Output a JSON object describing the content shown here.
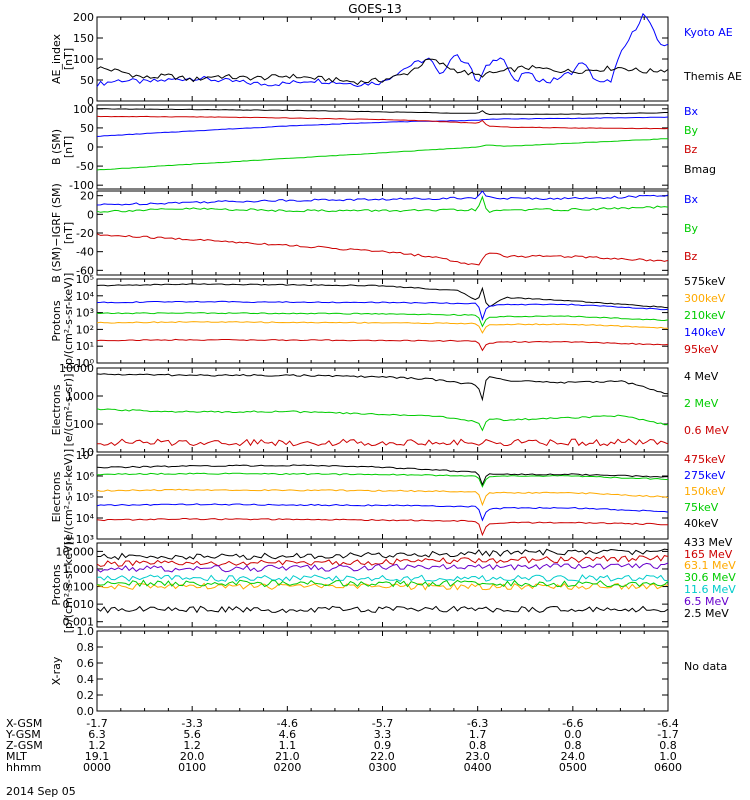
{
  "title": "GOES-13",
  "date_label": "2014 Sep 05",
  "no_data_label": "No data",
  "ephemeris": {
    "rows": [
      {
        "name": "X-GSM",
        "values": [
          "-1.7",
          "-3.3",
          "-4.6",
          "-5.7",
          "-6.3",
          "-6.6",
          "-6.4"
        ]
      },
      {
        "name": "Y-GSM",
        "values": [
          "6.3",
          "5.6",
          "4.6",
          "3.3",
          "1.7",
          "0.0",
          "-1.7"
        ]
      },
      {
        "name": "Z-GSM",
        "values": [
          "1.2",
          "1.2",
          "1.1",
          "0.9",
          "0.8",
          "0.8",
          "0.8"
        ]
      },
      {
        "name": "MLT",
        "values": [
          "19.1",
          "20.0",
          "21.0",
          "22.0",
          "23.0",
          "24.0",
          "1.0"
        ]
      },
      {
        "name": "hhmm",
        "values": [
          "0000",
          "0100",
          "0200",
          "0300",
          "0400",
          "0500",
          "0600"
        ]
      }
    ]
  },
  "chart_data": [
    {
      "type": "line",
      "id": "ae",
      "ylabel": [
        "AE_index",
        "[nT]"
      ],
      "ylim": [
        0,
        200
      ],
      "yscale": "linear",
      "yticks": [
        "0",
        "50",
        "100",
        "150",
        "200"
      ],
      "xlim": [
        "0000",
        "0600"
      ],
      "series": [
        {
          "name": "Kyoto AE",
          "color": "#0000ff",
          "x": [
            0,
            0.25,
            0.5,
            0.75,
            1,
            1.25,
            1.5,
            1.75,
            2,
            2.25,
            2.5,
            2.75,
            3,
            3.1,
            3.25,
            3.4,
            3.5,
            3.6,
            3.75,
            3.9,
            4,
            4.1,
            4.25,
            4.4,
            4.5,
            4.6,
            4.75,
            4.9,
            5,
            5.1,
            5.2,
            5.3,
            5.4,
            5.5,
            5.6,
            5.75,
            5.9,
            6
          ],
          "y": [
            40,
            50,
            45,
            50,
            55,
            50,
            45,
            40,
            42,
            50,
            45,
            40,
            45,
            60,
            80,
            95,
            100,
            60,
            110,
            90,
            40,
            85,
            110,
            40,
            70,
            55,
            45,
            60,
            70,
            95,
            60,
            40,
            50,
            110,
            150,
            210,
            140,
            130
          ]
        },
        {
          "name": "Themis AE",
          "color": "#000000",
          "x": [
            0,
            0.25,
            0.5,
            0.75,
            1,
            1.25,
            1.5,
            1.75,
            2,
            2.25,
            2.5,
            2.75,
            3,
            3.25,
            3.5,
            3.75,
            4,
            4.25,
            4.5,
            4.75,
            5,
            5.25,
            5.5,
            5.75,
            6
          ],
          "y": [
            80,
            70,
            55,
            60,
            50,
            60,
            55,
            55,
            60,
            55,
            50,
            45,
            50,
            65,
            100,
            75,
            60,
            70,
            80,
            75,
            70,
            75,
            80,
            70,
            75
          ]
        }
      ]
    },
    {
      "type": "line",
      "id": "bsm",
      "ylabel": [
        "B (SM)",
        "[nT]"
      ],
      "ylim": [
        -110,
        110
      ],
      "yscale": "linear",
      "yticks": [
        "-100",
        "-50",
        "0",
        "50",
        "100"
      ],
      "xlim": [
        "0000",
        "0600"
      ],
      "series": [
        {
          "name": "Bx",
          "color": "#0000ff",
          "x": [
            0,
            1,
            2,
            3,
            4,
            4.1,
            5,
            6
          ],
          "y": [
            28,
            42,
            55,
            65,
            70,
            73,
            75,
            78
          ]
        },
        {
          "name": "By",
          "color": "#00cc00",
          "x": [
            0,
            1,
            2,
            3,
            4,
            4.1,
            4.3,
            5,
            6
          ],
          "y": [
            -60,
            -45,
            -30,
            -15,
            0,
            5,
            2,
            10,
            22
          ]
        },
        {
          "name": "Bz",
          "color": "#cc0000",
          "x": [
            0,
            1,
            2,
            3,
            3.5,
            4,
            4.05,
            4.1,
            4.3,
            5,
            6
          ],
          "y": [
            80,
            79,
            76,
            72,
            68,
            62,
            70,
            55,
            52,
            50,
            48
          ]
        },
        {
          "name": "Bmag",
          "color": "#000000",
          "x": [
            0,
            1,
            2,
            3,
            4,
            4.05,
            4.1,
            4.3,
            5,
            6
          ],
          "y": [
            100,
            98,
            96,
            92,
            88,
            95,
            85,
            86,
            86,
            90
          ]
        }
      ]
    },
    {
      "type": "line",
      "id": "bigrf",
      "ylabel": [
        "B (SM)−IGRF (SM)",
        "[nT]"
      ],
      "ylim": [
        -65,
        25
      ],
      "yscale": "linear",
      "yticks": [
        "-60",
        "-40",
        "-20",
        "0",
        "20"
      ],
      "xlim": [
        "0000",
        "0600"
      ],
      "series": [
        {
          "name": "Bx",
          "color": "#0000ff",
          "x": [
            0,
            1,
            2,
            3,
            4,
            4.05,
            4.1,
            4.3,
            5,
            6
          ],
          "y": [
            10,
            13,
            15,
            16,
            18,
            25,
            18,
            17,
            17,
            20
          ]
        },
        {
          "name": "By",
          "color": "#00cc00",
          "x": [
            0,
            1,
            2,
            3,
            3.5,
            4,
            4.05,
            4.1,
            4.3,
            5,
            6
          ],
          "y": [
            3,
            6,
            4,
            4,
            4,
            5,
            18,
            2,
            5,
            5,
            8
          ]
        },
        {
          "name": "Bz",
          "color": "#cc0000",
          "x": [
            0,
            1,
            2,
            3,
            3.5,
            4,
            4.05,
            4.1,
            4.3,
            5,
            6
          ],
          "y": [
            -22,
            -27,
            -33,
            -40,
            -45,
            -55,
            -48,
            -40,
            -45,
            -45,
            -50
          ]
        }
      ]
    },
    {
      "type": "line",
      "id": "protons_kev",
      "ylabel": [
        "Protons",
        "[p/(cm²-s-sr-keV)]"
      ],
      "ylim": [
        1,
        100000
      ],
      "yscale": "log",
      "yticks": [
        "10⁰",
        "10¹",
        "10²",
        "10³",
        "10⁴",
        "10⁵"
      ],
      "xlim": [
        "0000",
        "0600"
      ],
      "series": [
        {
          "name": "575keV",
          "color": "#000000",
          "x": [
            0,
            1,
            2,
            3,
            3.8,
            4,
            4.05,
            4.1,
            4.3,
            5,
            6
          ],
          "y": [
            40000,
            50000,
            45000,
            40000,
            20000,
            5000,
            30000,
            2000,
            8000,
            5000,
            2000
          ]
        },
        {
          "name": "300keV",
          "color": "#ffaa00",
          "x": [
            0,
            1,
            2,
            3,
            4,
            4.05,
            4.1,
            4.3,
            5,
            6
          ],
          "y": [
            250,
            280,
            260,
            250,
            220,
            60,
            180,
            200,
            200,
            120
          ]
        },
        {
          "name": "210keV",
          "color": "#00cc00",
          "x": [
            0,
            1,
            2,
            3,
            4,
            4.05,
            4.1,
            4.3,
            5,
            6
          ],
          "y": [
            900,
            950,
            900,
            850,
            700,
            150,
            500,
            600,
            600,
            350
          ]
        },
        {
          "name": "140keV",
          "color": "#0000ff",
          "x": [
            0,
            1,
            2,
            3,
            4,
            4.05,
            4.1,
            4.3,
            5,
            6
          ],
          "y": [
            4000,
            4500,
            4200,
            4000,
            3500,
            400,
            2500,
            3000,
            3000,
            1500
          ]
        },
        {
          "name": "95keV",
          "color": "#cc0000",
          "x": [
            0,
            1,
            2,
            3,
            4,
            4.05,
            4.1,
            4.3,
            5,
            6
          ],
          "y": [
            22,
            24,
            23,
            22,
            20,
            6,
            15,
            18,
            18,
            12
          ]
        }
      ]
    },
    {
      "type": "line",
      "id": "electrons_mev",
      "ylabel": [
        "Electrons",
        "[e/(cm²-s-sr)]"
      ],
      "ylim": [
        10,
        10000
      ],
      "yscale": "log",
      "yticks": [
        "10",
        "100",
        "1000",
        "10000"
      ],
      "xlim": [
        "0000",
        "0600"
      ],
      "series": [
        {
          "name": "4 MeV",
          "color": "#000000",
          "x": [
            0,
            1,
            2,
            3,
            3.5,
            4,
            4.05,
            4.1,
            4.3,
            5,
            5.5,
            6
          ],
          "y": [
            6000,
            5500,
            5500,
            4800,
            4000,
            2500,
            800,
            5500,
            3500,
            3000,
            3500,
            1200
          ]
        },
        {
          "name": "2 MeV",
          "color": "#00cc00",
          "x": [
            0,
            1,
            2,
            3,
            3.5,
            4,
            4.05,
            4.1,
            4.3,
            5,
            5.5,
            6
          ],
          "y": [
            330,
            270,
            280,
            220,
            200,
            120,
            60,
            150,
            140,
            170,
            200,
            90
          ]
        },
        {
          "name": "0.6 MeV",
          "color": "#cc0000",
          "x": [
            0,
            1,
            2,
            3,
            4,
            5,
            6
          ],
          "y": [
            22,
            22,
            22,
            22,
            22,
            22,
            22
          ]
        }
      ]
    },
    {
      "type": "line",
      "id": "electrons_kev",
      "ylabel": [
        "Electrons",
        "[e/(cm²-s-sr-keV)]"
      ],
      "ylim": [
        1000,
        10000000
      ],
      "yscale": "log",
      "yticks": [
        "10³",
        "10⁴",
        "10⁵",
        "10⁶",
        "10⁷"
      ],
      "xlim": [
        "0000",
        "0600"
      ],
      "series": [
        {
          "name": "475keV",
          "color": "#cc0000",
          "x": [
            0,
            1,
            2,
            3,
            4,
            4.05,
            4.1,
            4.3,
            5,
            6
          ],
          "y": [
            8000,
            9000,
            8500,
            8000,
            7000,
            1500,
            5000,
            6000,
            6000,
            5000
          ]
        },
        {
          "name": "275keV",
          "color": "#0000ff",
          "x": [
            0,
            1,
            2,
            3,
            4,
            4.05,
            4.1,
            4.3,
            5,
            6
          ],
          "y": [
            40000,
            45000,
            42000,
            40000,
            35000,
            8000,
            25000,
            30000,
            30000,
            20000
          ]
        },
        {
          "name": "150keV",
          "color": "#ffaa00",
          "x": [
            0,
            1,
            2,
            3,
            4,
            4.05,
            4.1,
            4.3,
            5,
            6
          ],
          "y": [
            200000,
            220000,
            210000,
            200000,
            180000,
            40000,
            150000,
            160000,
            160000,
            100000
          ]
        },
        {
          "name": "75keV",
          "color": "#00cc00",
          "x": [
            0,
            1,
            2,
            3,
            4,
            4.05,
            4.1,
            4.3,
            5,
            6
          ],
          "y": [
            1200000,
            1300000,
            1250000,
            1200000,
            1000000,
            300000,
            900000,
            1000000,
            1000000,
            700000
          ]
        },
        {
          "name": "40keV",
          "color": "#000000",
          "x": [
            0,
            1,
            2,
            2.5,
            3,
            3.5,
            4,
            4.05,
            4.1,
            4.3,
            5,
            6
          ],
          "y": [
            2500000,
            3000000,
            3200000,
            3000000,
            2600000,
            2000000,
            1500000,
            400000,
            1300000,
            1200000,
            1200000,
            900000
          ]
        }
      ]
    },
    {
      "type": "line",
      "id": "protons_mev",
      "ylabel": [
        "Protons",
        "[p/(cm²-s-sr-keV)]"
      ],
      "ylim": [
        0.0005,
        30
      ],
      "yscale": "log",
      "yticks": [
        "0.001",
        "0.010",
        "0.100",
        "1.000",
        "10.000"
      ],
      "xlim": [
        "0000",
        "0600"
      ],
      "series": [
        {
          "name": "433 MeV",
          "color": "#000000",
          "x": [
            0,
            1,
            2,
            3,
            4,
            5,
            6
          ],
          "y": [
            5,
            5,
            5.5,
            6,
            8,
            9,
            10
          ]
        },
        {
          "name": "165 MeV",
          "color": "#cc0000",
          "x": [
            0,
            1,
            2,
            3,
            4,
            5,
            6
          ],
          "y": [
            2,
            2,
            2.2,
            2.5,
            3,
            3.5,
            4
          ]
        },
        {
          "name": "63.1 MeV",
          "color": "#ffaa00",
          "x": [
            0,
            1,
            2,
            3,
            4,
            5,
            6
          ],
          "y": [
            0.1,
            0.1,
            0.1,
            0.1,
            0.1,
            0.1,
            0.1
          ]
        },
        {
          "name": "30.6 MeV",
          "color": "#00cc00",
          "x": [
            0,
            1,
            2,
            3,
            4,
            5,
            6
          ],
          "y": [
            0.15,
            0.15,
            0.15,
            0.15,
            0.15,
            0.15,
            0.15
          ]
        },
        {
          "name": "11.6 MeV",
          "color": "#00cccc",
          "x": [
            0,
            1,
            2,
            3,
            4,
            5,
            6
          ],
          "y": [
            0.3,
            0.3,
            0.3,
            0.3,
            0.3,
            0.3,
            0.3
          ]
        },
        {
          "name": "6.5 MeV",
          "color": "#6600cc",
          "x": [
            0,
            1,
            2,
            3,
            4,
            5,
            6
          ],
          "y": [
            1.0,
            1.0,
            1.1,
            1.2,
            1.3,
            1.4,
            1.5
          ]
        },
        {
          "name": "2.5 MeV",
          "color": "#000000",
          "x": [
            0,
            1,
            2,
            3,
            4,
            5,
            6
          ],
          "y": [
            0.005,
            0.005,
            0.005,
            0.005,
            0.005,
            0.005,
            0.005
          ]
        }
      ]
    },
    {
      "type": "line",
      "id": "xray",
      "ylabel": [
        "X-ray",
        ""
      ],
      "ylim": [
        0,
        1.0
      ],
      "yscale": "linear",
      "yticks": [
        "0.0",
        "0.2",
        "0.4",
        "0.6",
        "0.8",
        "1.0"
      ],
      "xlim": [
        "0000",
        "0600"
      ],
      "series": []
    }
  ]
}
